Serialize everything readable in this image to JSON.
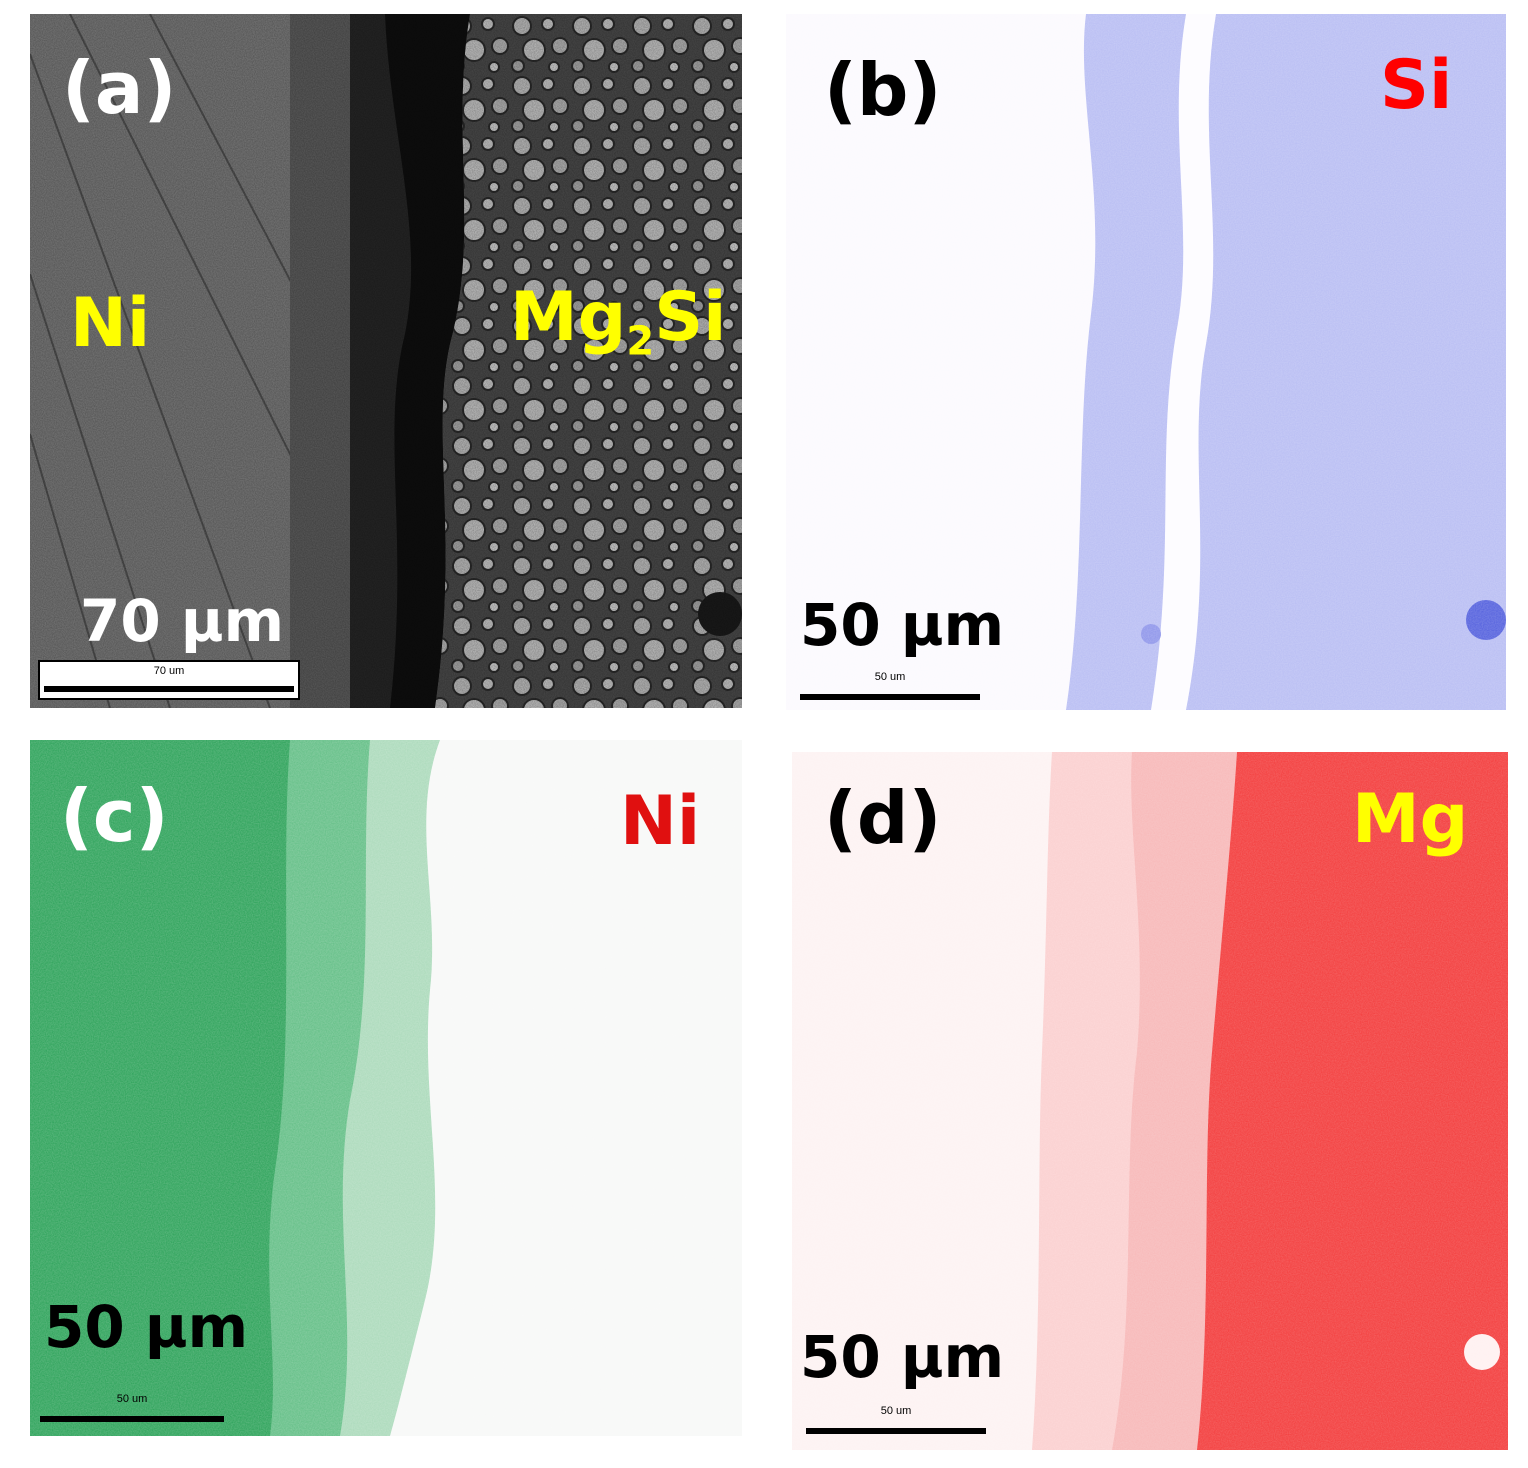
{
  "figure": {
    "panels": [
      {
        "id": "a",
        "label": "(a)",
        "elements": [
          "Ni"
        ],
        "compound": {
          "base": "Mg",
          "sub": "2",
          "tail": "Si"
        },
        "scale_text": "70 µm",
        "scale_bar_text": "70 um",
        "colors": {
          "label": "#ffffff",
          "element": "#ffff00",
          "scale_text": "#ffffff",
          "scale_bar": "#000000",
          "scale_bar_box": "#ffffff"
        }
      },
      {
        "id": "b",
        "label": "(b)",
        "element": "Si",
        "scale_text": "50 µm",
        "scale_bar_text": "50 um",
        "colors": {
          "label": "#000000",
          "element": "#ff0000",
          "map": "#7f86ee"
        }
      },
      {
        "id": "c",
        "label": "(c)",
        "element": "Ni",
        "scale_text": "50 µm",
        "scale_bar_text": "50 um",
        "colors": {
          "label": "#ffffff",
          "element": "#e01010",
          "map": "#2aa458"
        }
      },
      {
        "id": "d",
        "label": "(d)",
        "element": "Mg",
        "scale_text": "50 µm",
        "scale_bar_text": "50 um",
        "colors": {
          "label": "#000000",
          "element": "#ffff00",
          "map": "#ff3b3b"
        }
      }
    ]
  }
}
